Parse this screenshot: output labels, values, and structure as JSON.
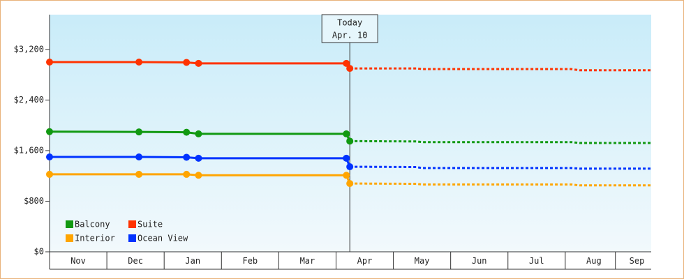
{
  "chart_data": {
    "type": "line",
    "ylim": [
      0,
      3750
    ],
    "yticks": [
      {
        "value": 0,
        "label": "$0"
      },
      {
        "value": 800,
        "label": "$800"
      },
      {
        "value": 1600,
        "label": "$1,600"
      },
      {
        "value": 2400,
        "label": "$2,400"
      },
      {
        "value": 3200,
        "label": "$3,200"
      }
    ],
    "xlim": [
      0,
      10.5
    ],
    "xticks": [
      {
        "value": 0.5,
        "label": "Nov"
      },
      {
        "value": 1.5,
        "label": "Dec"
      },
      {
        "value": 2.5,
        "label": "Jan"
      },
      {
        "value": 3.5,
        "label": "Feb"
      },
      {
        "value": 4.5,
        "label": "Mar"
      },
      {
        "value": 5.5,
        "label": "Apr"
      },
      {
        "value": 6.5,
        "label": "May"
      },
      {
        "value": 7.5,
        "label": "Jun"
      },
      {
        "value": 8.5,
        "label": "Jul"
      },
      {
        "value": 9.5,
        "label": "Aug"
      },
      {
        "value": 10.25,
        "label": "Sep"
      }
    ],
    "today": {
      "x": 5.24,
      "label": "Today",
      "date": "Apr. 10"
    },
    "x": [
      0,
      1.56,
      2.39,
      2.6,
      5.18,
      5.24
    ],
    "forecast_x": [
      5.24,
      6.4,
      6.5,
      9.1,
      9.25,
      10.5
    ],
    "series": [
      {
        "name": "Balcony",
        "color": "#119911",
        "values": [
          1900,
          1895,
          1890,
          1865,
          1865,
          1750
        ],
        "forecast": [
          1750,
          1745,
          1735,
          1735,
          1720,
          1720
        ]
      },
      {
        "name": "Suite",
        "color": "#ff3300",
        "values": [
          3000,
          3000,
          2995,
          2980,
          2980,
          2900
        ],
        "forecast": [
          2900,
          2900,
          2890,
          2890,
          2870,
          2870
        ]
      },
      {
        "name": "Interior",
        "color": "#ffa500",
        "values": [
          1225,
          1225,
          1225,
          1210,
          1210,
          1080
        ],
        "forecast": [
          1080,
          1075,
          1065,
          1065,
          1050,
          1050
        ]
      },
      {
        "name": "Ocean View",
        "color": "#0033ff",
        "values": [
          1500,
          1500,
          1495,
          1480,
          1480,
          1345
        ],
        "forecast": [
          1345,
          1340,
          1325,
          1325,
          1315,
          1315
        ]
      }
    ]
  }
}
